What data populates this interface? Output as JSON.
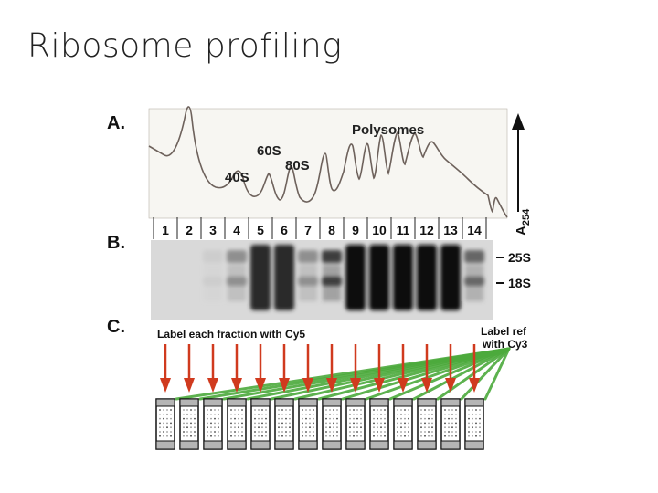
{
  "slide": {
    "title": "Ribosome profiling"
  },
  "figure": {
    "panels": [
      "A.",
      "B.",
      "C."
    ],
    "profile": {
      "peaks": [
        "40S",
        "60S",
        "80S",
        "Polysomes"
      ],
      "axis_label_letter": "A",
      "axis_label_sub": "254"
    },
    "gel": {
      "lanes": [
        "1",
        "2",
        "3",
        "4",
        "5",
        "6",
        "7",
        "8",
        "9",
        "10",
        "11",
        "12",
        "13",
        "14"
      ],
      "bands": [
        "25S",
        "18S"
      ],
      "lane_intensity": [
        0.0,
        0.0,
        0.05,
        0.35,
        0.85,
        0.85,
        0.35,
        0.75,
        1.0,
        1.0,
        1.0,
        1.0,
        1.0,
        0.55
      ]
    },
    "labeling": {
      "cy5_label": "Label each fraction with Cy5",
      "ref_label_line1": "Label ref",
      "ref_label_line2": "with Cy3",
      "array_count": 14,
      "colors": {
        "cy5": "#d03a1e",
        "cy3": "#4caa3c"
      }
    }
  }
}
